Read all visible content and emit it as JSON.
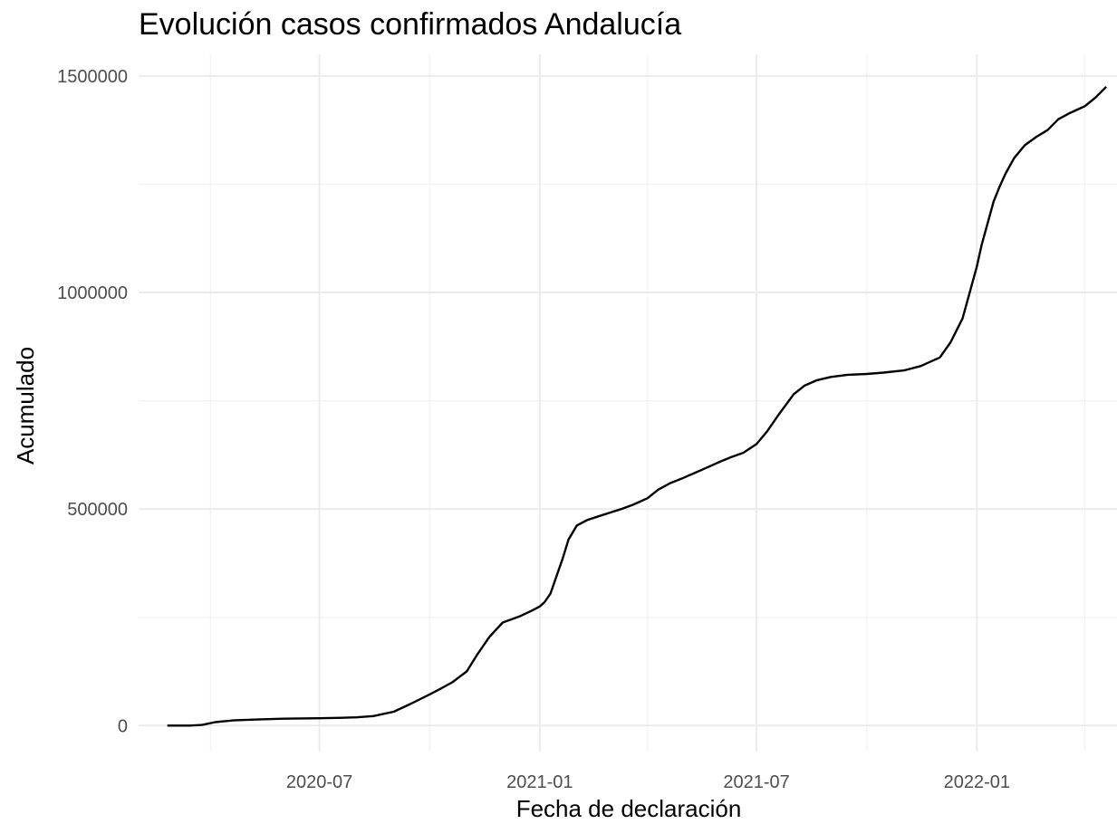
{
  "chart_data": {
    "type": "line",
    "title": "Evolución casos confirmados Andalucía",
    "xlabel": "Fecha de declaración",
    "ylabel": "Acumulado",
    "x_type": "date",
    "xlim": [
      "2020-02-01",
      "2022-04-28"
    ],
    "ylim": [
      -60000,
      1550000
    ],
    "x_ticks": [
      {
        "value": "2020-07-01",
        "label": "2020-07"
      },
      {
        "value": "2021-01-01",
        "label": "2021-01"
      },
      {
        "value": "2021-07-01",
        "label": "2021-07"
      },
      {
        "value": "2022-01-01",
        "label": "2022-01"
      }
    ],
    "x_minor_ticks": [
      "2020-04-01",
      "2020-10-01",
      "2021-04-01",
      "2021-10-01",
      "2022-04-01"
    ],
    "y_ticks": [
      {
        "value": 0,
        "label": "0"
      },
      {
        "value": 500000,
        "label": "500000"
      },
      {
        "value": 1000000,
        "label": "1000000"
      },
      {
        "value": 1500000,
        "label": "1500000"
      }
    ],
    "y_minor_ticks": [
      250000,
      750000,
      1250000
    ],
    "grid": true,
    "legend": "none",
    "color": "#000000",
    "series": [
      {
        "x": [
          "2020-02-25",
          "2020-03-15",
          "2020-03-25",
          "2020-04-05",
          "2020-04-20",
          "2020-05-10",
          "2020-06-01",
          "2020-07-01",
          "2020-07-20",
          "2020-08-01",
          "2020-08-15",
          "2020-09-01",
          "2020-09-15",
          "2020-10-01",
          "2020-10-10",
          "2020-10-20",
          "2020-11-01",
          "2020-11-10",
          "2020-11-20",
          "2020-12-01",
          "2020-12-15",
          "2020-12-25",
          "2021-01-01",
          "2021-01-05",
          "2021-01-10",
          "2021-01-15",
          "2021-01-20",
          "2021-01-25",
          "2021-02-01",
          "2021-02-10",
          "2021-02-20",
          "2021-03-01",
          "2021-03-10",
          "2021-03-20",
          "2021-04-01",
          "2021-04-10",
          "2021-04-20",
          "2021-05-01",
          "2021-05-10",
          "2021-05-20",
          "2021-06-01",
          "2021-06-10",
          "2021-06-20",
          "2021-07-01",
          "2021-07-10",
          "2021-07-20",
          "2021-08-01",
          "2021-08-10",
          "2021-08-20",
          "2021-09-01",
          "2021-09-15",
          "2021-10-01",
          "2021-10-15",
          "2021-11-01",
          "2021-11-15",
          "2021-12-01",
          "2021-12-10",
          "2021-12-20",
          "2021-12-25",
          "2022-01-01",
          "2022-01-05",
          "2022-01-10",
          "2022-01-15",
          "2022-01-20",
          "2022-01-25",
          "2022-02-01",
          "2022-02-10",
          "2022-02-20",
          "2022-03-01",
          "2022-03-10",
          "2022-03-20",
          "2022-04-01",
          "2022-04-10",
          "2022-04-19"
        ],
        "y": [
          0,
          0,
          1500,
          8000,
          12000,
          14000,
          16000,
          17000,
          18000,
          19000,
          22000,
          32000,
          50000,
          72000,
          85000,
          100000,
          125000,
          165000,
          205000,
          238000,
          252000,
          265000,
          275000,
          285000,
          305000,
          345000,
          385000,
          430000,
          462000,
          475000,
          484000,
          492000,
          500000,
          510000,
          525000,
          545000,
          560000,
          572000,
          583000,
          595000,
          610000,
          620000,
          630000,
          650000,
          680000,
          720000,
          765000,
          785000,
          797000,
          805000,
          810000,
          812000,
          815000,
          820000,
          830000,
          850000,
          885000,
          940000,
          990000,
          1060000,
          1110000,
          1160000,
          1210000,
          1245000,
          1275000,
          1310000,
          1340000,
          1360000,
          1375000,
          1400000,
          1415000,
          1430000,
          1450000,
          1475000
        ]
      }
    ]
  }
}
